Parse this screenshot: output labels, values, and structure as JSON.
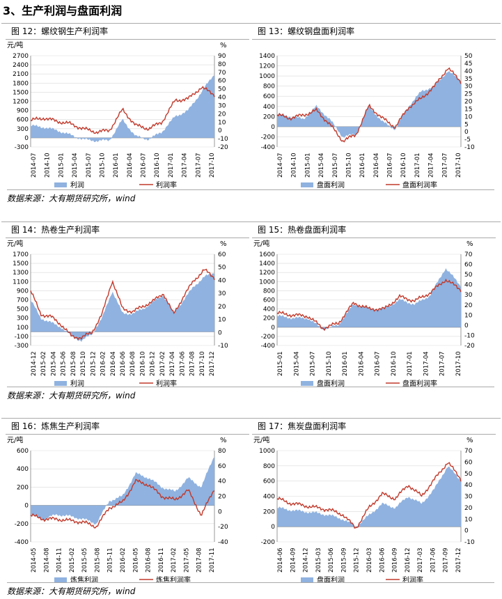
{
  "section_title": "3、生产利润与盘面利润",
  "sources": [
    "数据来源：大有期货研究所，wind",
    "数据来源：大有期货研究所，wind",
    "数据来源：大有期货研究所，wind"
  ],
  "colors": {
    "area": "#8fb2e0",
    "line": "#c0392b",
    "grid": "#d9d9d9",
    "axis": "#808080"
  },
  "figures": [
    {
      "fig_title": "图 12：螺纹钢生产利润率",
      "left_unit": "元/吨",
      "right_unit": "%",
      "left_ticks": [
        "2700",
        "2400",
        "2100",
        "1800",
        "1500",
        "1200",
        "900",
        "600",
        "300",
        "0",
        "-300"
      ],
      "right_ticks": [
        "90",
        "80",
        "70",
        "60",
        "50",
        "40",
        "30",
        "20",
        "10",
        "0",
        "-10",
        "-20"
      ],
      "x_ticks": [
        "2014-07",
        "2014-10",
        "2015-01",
        "2015-04",
        "2015-07",
        "2015-10",
        "2016-01",
        "2016-04",
        "2016-07",
        "2016-10",
        "2017-01",
        "2017-04",
        "2017-07",
        "2017-10"
      ],
      "legend_area": "利润",
      "legend_line": "利润率"
    },
    {
      "fig_title": "图 13：螺纹钢盘面利润率",
      "left_unit": "",
      "right_unit": "",
      "left_ticks": [
        "1400",
        "1200",
        "1000",
        "800",
        "600",
        "400",
        "200",
        "0",
        "-200",
        "-400"
      ],
      "right_ticks": [
        "50",
        "45",
        "40",
        "35",
        "30",
        "25",
        "20",
        "15",
        "10",
        "5",
        "0",
        "-5",
        "-10"
      ],
      "x_ticks": [
        "2014-07",
        "2014-10",
        "2015-01",
        "2015-04",
        "2015-07",
        "2015-10",
        "2016-01",
        "2016-04",
        "2016-07",
        "2016-10",
        "2017-01",
        "2017-04",
        "2017-07",
        "2017-10"
      ],
      "legend_area": "盘面利润",
      "legend_line": "盘面利润率"
    },
    {
      "fig_title": "图 14：热卷生产利润率",
      "left_unit": "元/吨",
      "right_unit": "%",
      "left_ticks": [
        "1700",
        "1500",
        "1300",
        "1100",
        "900",
        "700",
        "500",
        "300",
        "100",
        "-100",
        "-300"
      ],
      "right_ticks": [
        "60",
        "50",
        "40",
        "30",
        "20",
        "10",
        "0",
        "-10"
      ],
      "x_ticks": [
        "2014-12",
        "2015-02",
        "2015-04",
        "2015-06",
        "2015-08",
        "2015-10",
        "2015-12",
        "2016-02",
        "2016-04",
        "2016-06",
        "2016-08",
        "2016-10",
        "2016-12",
        "2017-02",
        "2017-04",
        "2017-06",
        "2017-08",
        "2017-10",
        "2017-12"
      ],
      "legend_area": "利润",
      "legend_line": "利润率"
    },
    {
      "fig_title": "图 15：热卷盘面利润率",
      "left_unit": "元/吨",
      "right_unit": "%",
      "left_ticks": [
        "1600",
        "1400",
        "1200",
        "1000",
        "800",
        "600",
        "400",
        "200",
        "0",
        "-200",
        "-400"
      ],
      "right_ticks": [
        "70",
        "60",
        "50",
        "40",
        "30",
        "20",
        "10",
        "0",
        "-10",
        "-20"
      ],
      "x_ticks": [
        "2015-01",
        "2015-04",
        "2015-07",
        "2015-10",
        "2016-01",
        "2016-04",
        "2016-07",
        "2016-10",
        "2017-01",
        "2017-04",
        "2017-07",
        "2017-10"
      ],
      "legend_area": "盘面利润",
      "legend_line": "盘面利润率"
    },
    {
      "fig_title": "图 16：炼焦生产利润率",
      "left_unit": "元/吨",
      "right_unit": "%",
      "left_ticks": [
        "600",
        "400",
        "200",
        "0",
        "-200",
        "-400"
      ],
      "right_ticks": [
        "80",
        "60",
        "40",
        "20",
        "0",
        "-20",
        "-40"
      ],
      "x_ticks": [
        "2014-05",
        "2014-08",
        "2014-11",
        "2015-02",
        "2015-05",
        "2015-08",
        "2015-11",
        "2016-02",
        "2016-05",
        "2016-08",
        "2016-11",
        "2017-02",
        "2017-05",
        "2017-08",
        "2017-11"
      ],
      "legend_area": "炼焦利润",
      "legend_line": "炼焦利润率"
    },
    {
      "fig_title": "图 17：焦炭盘面利润率",
      "left_unit": "元/吨",
      "right_unit": "%",
      "left_ticks": [
        "1000",
        "800",
        "600",
        "400",
        "200",
        "0",
        "-200"
      ],
      "right_ticks": [
        "70",
        "60",
        "50",
        "40",
        "30",
        "20",
        "10",
        "0",
        "-10"
      ],
      "x_ticks": [
        "2014-06",
        "2014-09",
        "2014-12",
        "2015-03",
        "2015-06",
        "2015-09",
        "2015-12",
        "2016-03",
        "2016-06",
        "2016-09",
        "2016-12",
        "2017-03",
        "2017-06",
        "2017-09",
        "2017-12"
      ],
      "legend_area": "盘面利润",
      "legend_line": "利润率"
    }
  ],
  "chart_data": [
    {
      "type": "area",
      "title": "图 12：螺纹钢生产利润率",
      "ylabel": "元/吨",
      "y2label": "%",
      "ylim": [
        -300,
        2700
      ],
      "y2lim": [
        -20,
        90
      ],
      "x": [
        "2014-07",
        "2014-10",
        "2015-01",
        "2015-04",
        "2015-07",
        "2015-10",
        "2016-01",
        "2016-04",
        "2016-07",
        "2016-10",
        "2017-01",
        "2017-04",
        "2017-07",
        "2017-10",
        "2017-12"
      ],
      "series": [
        {
          "name": "利润",
          "axis": "left",
          "values": [
            400,
            350,
            250,
            100,
            -50,
            -100,
            -80,
            600,
            50,
            -50,
            200,
            700,
            900,
            1500,
            2100
          ]
        },
        {
          "name": "利润率",
          "axis": "right",
          "values": [
            12,
            15,
            11,
            8,
            2,
            -2,
            0,
            25,
            6,
            2,
            10,
            36,
            38,
            52,
            43
          ]
        }
      ]
    },
    {
      "type": "area",
      "title": "图 13：螺纹钢盘面利润率",
      "ylabel": "",
      "y2label": "",
      "ylim": [
        -400,
        1400
      ],
      "y2lim": [
        -10,
        50
      ],
      "x": [
        "2014-07",
        "2014-10",
        "2015-01",
        "2015-04",
        "2015-07",
        "2015-10",
        "2016-01",
        "2016-04",
        "2016-07",
        "2016-10",
        "2017-01",
        "2017-04",
        "2017-07",
        "2017-10",
        "2017-12"
      ],
      "series": [
        {
          "name": "盘面利润",
          "axis": "left",
          "values": [
            250,
            200,
            150,
            400,
            150,
            -200,
            -150,
            400,
            100,
            -50,
            400,
            700,
            800,
            1100,
            900
          ]
        },
        {
          "name": "盘面利润率",
          "axis": "right",
          "values": [
            11,
            9,
            11,
            14,
            5,
            -6,
            -2,
            17,
            9,
            3,
            16,
            22,
            30,
            42,
            33
          ]
        }
      ]
    },
    {
      "type": "area",
      "title": "图 14：热卷生产利润率",
      "ylabel": "元/吨",
      "y2label": "%",
      "ylim": [
        -300,
        1700
      ],
      "y2lim": [
        -10,
        60
      ],
      "x": [
        "2014-12",
        "2015-02",
        "2015-04",
        "2015-06",
        "2015-08",
        "2015-10",
        "2015-12",
        "2016-02",
        "2016-04",
        "2016-06",
        "2016-08",
        "2016-10",
        "2016-12",
        "2017-02",
        "2017-04",
        "2017-06",
        "2017-08",
        "2017-10",
        "2017-12"
      ],
      "series": [
        {
          "name": "利润",
          "axis": "left",
          "values": [
            700,
            300,
            200,
            100,
            -100,
            -200,
            -50,
            300,
            900,
            400,
            400,
            500,
            650,
            800,
            400,
            700,
            1000,
            1200,
            1300
          ]
        },
        {
          "name": "利润率",
          "axis": "right",
          "values": [
            32,
            14,
            12,
            6,
            -3,
            -4,
            0,
            14,
            40,
            18,
            16,
            20,
            24,
            30,
            14,
            28,
            40,
            48,
            42
          ]
        }
      ]
    },
    {
      "type": "area",
      "title": "图 15：热卷盘面利润率",
      "ylabel": "元/吨",
      "y2label": "%",
      "ylim": [
        -400,
        1600
      ],
      "y2lim": [
        -20,
        70
      ],
      "x": [
        "2015-01",
        "2015-04",
        "2015-07",
        "2015-10",
        "2016-01",
        "2016-04",
        "2016-07",
        "2016-10",
        "2017-01",
        "2017-04",
        "2017-07",
        "2017-10",
        "2017-12"
      ],
      "series": [
        {
          "name": "盘面利润",
          "axis": "left",
          "values": [
            250,
            200,
            200,
            -50,
            50,
            500,
            400,
            400,
            600,
            500,
            700,
            1300,
            900
          ]
        },
        {
          "name": "盘面利润率",
          "axis": "right",
          "values": [
            12,
            10,
            9,
            -3,
            2,
            22,
            16,
            16,
            28,
            24,
            32,
            45,
            35
          ]
        }
      ]
    },
    {
      "type": "area",
      "title": "图 16：炼焦生产利润率",
      "ylabel": "元/吨",
      "y2label": "%",
      "ylim": [
        -400,
        600
      ],
      "y2lim": [
        -40,
        80
      ],
      "x": [
        "2014-05",
        "2014-08",
        "2014-11",
        "2015-02",
        "2015-05",
        "2015-08",
        "2015-11",
        "2016-02",
        "2016-05",
        "2016-08",
        "2016-11",
        "2017-02",
        "2017-05",
        "2017-08",
        "2017-11"
      ],
      "series": [
        {
          "name": "炼焦利润",
          "axis": "left",
          "values": [
            -100,
            -150,
            -100,
            -120,
            -150,
            -200,
            50,
            100,
            350,
            300,
            200,
            150,
            300,
            200,
            550
          ]
        },
        {
          "name": "炼焦利润率",
          "axis": "right",
          "values": [
            -5,
            -10,
            -10,
            -12,
            -14,
            -20,
            5,
            12,
            40,
            35,
            20,
            15,
            28,
            -5,
            30
          ]
        }
      ]
    },
    {
      "type": "area",
      "title": "图 17：焦炭盘面利润率",
      "ylabel": "元/吨",
      "y2label": "%",
      "ylim": [
        -200,
        1000
      ],
      "y2lim": [
        -10,
        70
      ],
      "x": [
        "2014-06",
        "2014-09",
        "2014-12",
        "2015-03",
        "2015-06",
        "2015-09",
        "2015-12",
        "2016-03",
        "2016-06",
        "2016-09",
        "2016-12",
        "2017-03",
        "2017-06",
        "2017-09",
        "2017-12"
      ],
      "series": [
        {
          "name": "盘面利润",
          "axis": "left",
          "values": [
            250,
            220,
            200,
            180,
            150,
            100,
            0,
            150,
            300,
            250,
            400,
            300,
            500,
            800,
            600
          ]
        },
        {
          "name": "利润率",
          "axis": "right",
          "values": [
            28,
            24,
            22,
            20,
            18,
            14,
            2,
            20,
            32,
            28,
            40,
            30,
            45,
            60,
            45
          ]
        }
      ]
    }
  ]
}
